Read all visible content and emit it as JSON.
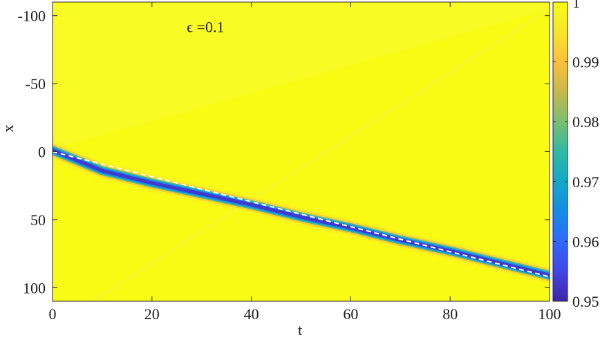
{
  "chart_data": {
    "type": "heatmap",
    "xlabel": "t",
    "ylabel": "x",
    "xlim": [
      0,
      100
    ],
    "ylim": [
      -110,
      110
    ],
    "y_axis_reversed": true,
    "x_ticks": [
      "0",
      "20",
      "40",
      "60",
      "80",
      "100"
    ],
    "x_tick_values": [
      0,
      20,
      40,
      60,
      80,
      100
    ],
    "y_ticks": [
      "-100",
      "-50",
      "0",
      "50",
      "100"
    ],
    "y_tick_values": [
      -100,
      -50,
      0,
      50,
      100
    ],
    "annotation": "ϵ =0.1",
    "annotation_t": 27,
    "annotation_x": -88,
    "colorbar": {
      "min": 0.95,
      "max": 1.0,
      "ticks": [
        "0.95",
        "0.96",
        "0.97",
        "0.98",
        "0.99",
        "1"
      ],
      "tick_values": [
        0.95,
        0.96,
        0.97,
        0.98,
        0.99,
        1.0
      ],
      "colormap": [
        "#3e26a8",
        "#4145e6",
        "#2f69fc",
        "#158ce7",
        "#15a7c9",
        "#30b9a2",
        "#7abf72",
        "#c7b94a",
        "#fcc03a",
        "#f8e52a",
        "#f9fb15"
      ]
    },
    "background_value": 1.0,
    "trough": {
      "t": [
        0,
        10,
        20,
        30,
        40,
        50,
        60,
        70,
        80,
        90,
        100
      ],
      "x": [
        -1,
        14,
        23,
        31,
        39,
        48,
        56,
        65,
        73,
        82,
        91
      ],
      "min_value": 0.953
    },
    "dashed_line": {
      "t": [
        0,
        100
      ],
      "x": [
        0,
        92
      ],
      "color": "#ffffff"
    }
  }
}
